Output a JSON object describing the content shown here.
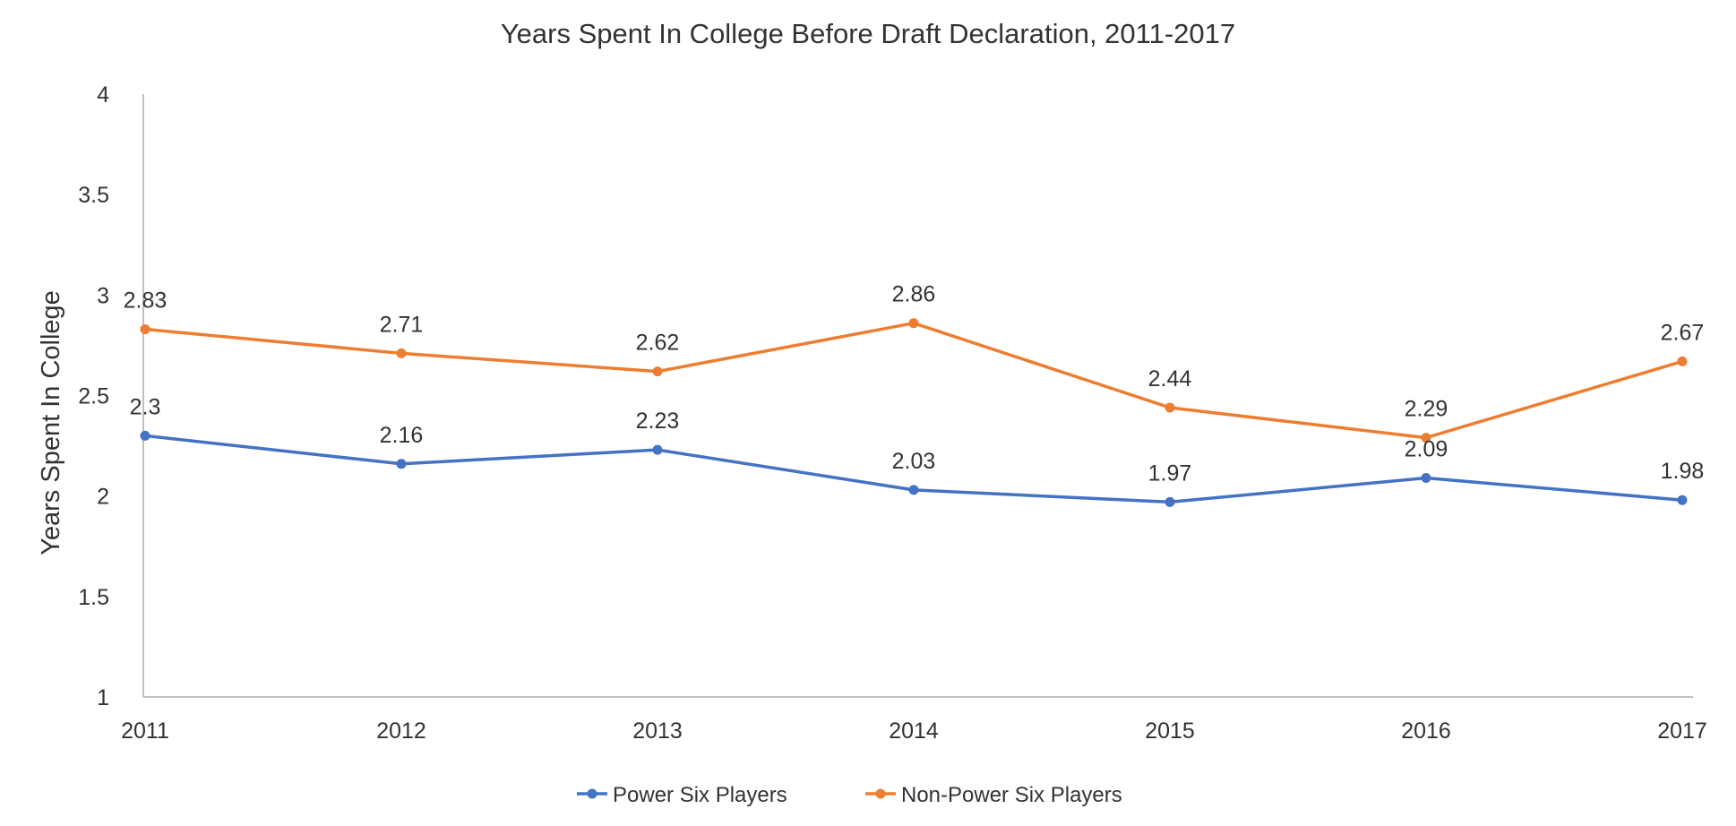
{
  "chart_data": {
    "type": "line",
    "title": "Years Spent In College Before Draft Declaration, 2011-2017",
    "xlabel": "",
    "ylabel": "Years Spent In College",
    "categories": [
      "2011",
      "2012",
      "2013",
      "2014",
      "2015",
      "2016",
      "2017"
    ],
    "ylim": [
      1,
      4
    ],
    "yticks": [
      "1",
      "1.5",
      "2",
      "2.5",
      "3",
      "3.5",
      "4"
    ],
    "grid": false,
    "legend_position": "bottom",
    "series": [
      {
        "name": "Power Six Players",
        "color": "#4472c4",
        "values": [
          2.3,
          2.16,
          2.23,
          2.03,
          1.97,
          2.09,
          1.98
        ],
        "labels": [
          "2.3",
          "2.16",
          "2.23",
          "2.03",
          "1.97",
          "2.09",
          "1.98"
        ]
      },
      {
        "name": "Non-Power Six Players",
        "color": "#ed7d31",
        "values": [
          2.83,
          2.71,
          2.62,
          2.86,
          2.44,
          2.29,
          2.67
        ],
        "labels": [
          "2.83",
          "2.71",
          "2.62",
          "2.86",
          "2.44",
          "2.29",
          "2.67"
        ]
      }
    ]
  }
}
